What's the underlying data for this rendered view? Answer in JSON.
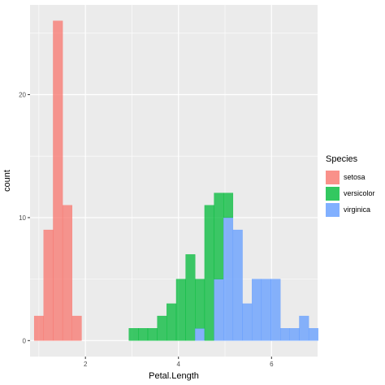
{
  "chart_data": {
    "type": "bar",
    "subtype": "stacked-histogram",
    "title": "",
    "xlabel": "Petal.Length",
    "ylabel": "count",
    "xlim": [
      0.81,
      6.99
    ],
    "ylim": [
      -1.3,
      27.3
    ],
    "x_ticks": [
      2,
      4,
      6
    ],
    "y_ticks": [
      0,
      10,
      20
    ],
    "grid": true,
    "panel_background": "#EBEBEB",
    "bin_edges": [
      0.9,
      1.103,
      1.307,
      1.51,
      1.714,
      1.917,
      2.121,
      2.324,
      2.528,
      2.731,
      2.934,
      3.138,
      3.341,
      3.545,
      3.748,
      3.952,
      4.155,
      4.359,
      4.562,
      4.766,
      4.969,
      5.172,
      5.376,
      5.579,
      5.783,
      5.986,
      6.19,
      6.393,
      6.597,
      6.8,
      7.003
    ],
    "series": [
      {
        "name": "setosa",
        "color": "#F8766D",
        "values": [
          2,
          9,
          26,
          11,
          2,
          0,
          0,
          0,
          0,
          0,
          0,
          0,
          0,
          0,
          0,
          0,
          0,
          0,
          0,
          0,
          0,
          0,
          0,
          0,
          0,
          0,
          0,
          0,
          0,
          0
        ]
      },
      {
        "name": "versicolor",
        "color": "#00BA38",
        "values": [
          0,
          0,
          0,
          0,
          0,
          0,
          0,
          0,
          0,
          0,
          1,
          1,
          1,
          2,
          3,
          5,
          7,
          4,
          11,
          7,
          2,
          0,
          0,
          0,
          0,
          0,
          0,
          0,
          0,
          0
        ]
      },
      {
        "name": "virginica",
        "color": "#619CFF",
        "values": [
          0,
          0,
          0,
          0,
          0,
          0,
          0,
          0,
          0,
          0,
          0,
          0,
          0,
          0,
          0,
          0,
          0,
          1,
          0,
          5,
          10,
          9,
          3,
          5,
          5,
          5,
          1,
          1,
          2,
          1
        ]
      }
    ],
    "legend": {
      "title": "Species",
      "position": "right"
    }
  }
}
